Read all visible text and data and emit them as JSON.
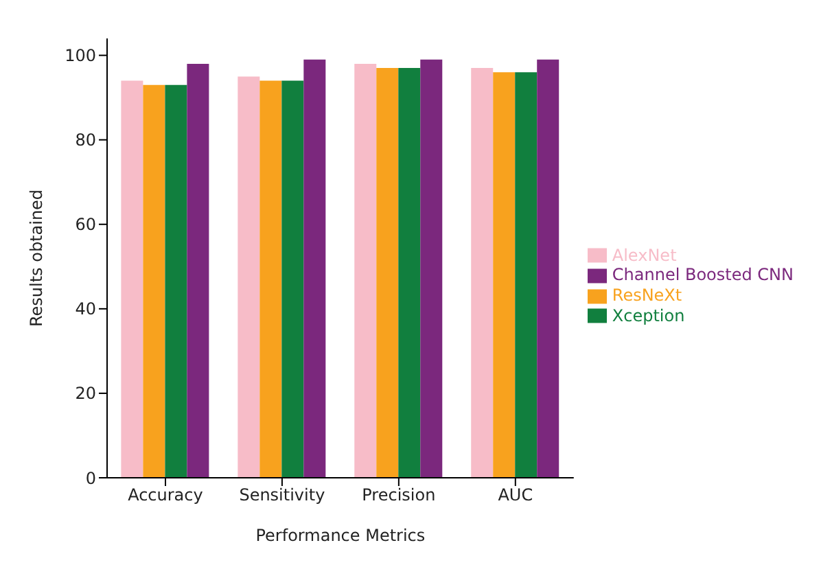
{
  "chart_data": {
    "type": "bar",
    "xlabel": "Performance Metrics",
    "ylabel": "Results obtained",
    "categories": [
      "Accuracy",
      "Sensitivity",
      "Precision",
      "AUC"
    ],
    "series": [
      {
        "name": "AlexNet",
        "color": "#f7bcc8",
        "values": [
          94,
          95,
          98,
          97
        ]
      },
      {
        "name": "ResNeXt",
        "color": "#f8a21e",
        "values": [
          93,
          94,
          97,
          96
        ]
      },
      {
        "name": "Xception",
        "color": "#117f3e",
        "values": [
          93,
          94,
          97,
          96
        ]
      },
      {
        "name": "Channel Boosted CNN",
        "color": "#7b287d",
        "values": [
          98,
          99,
          99,
          99
        ]
      }
    ],
    "ylim": [
      0,
      104
    ],
    "yticks": [
      0,
      20,
      40,
      60,
      80,
      100
    ],
    "grid": false,
    "legend": "right"
  }
}
